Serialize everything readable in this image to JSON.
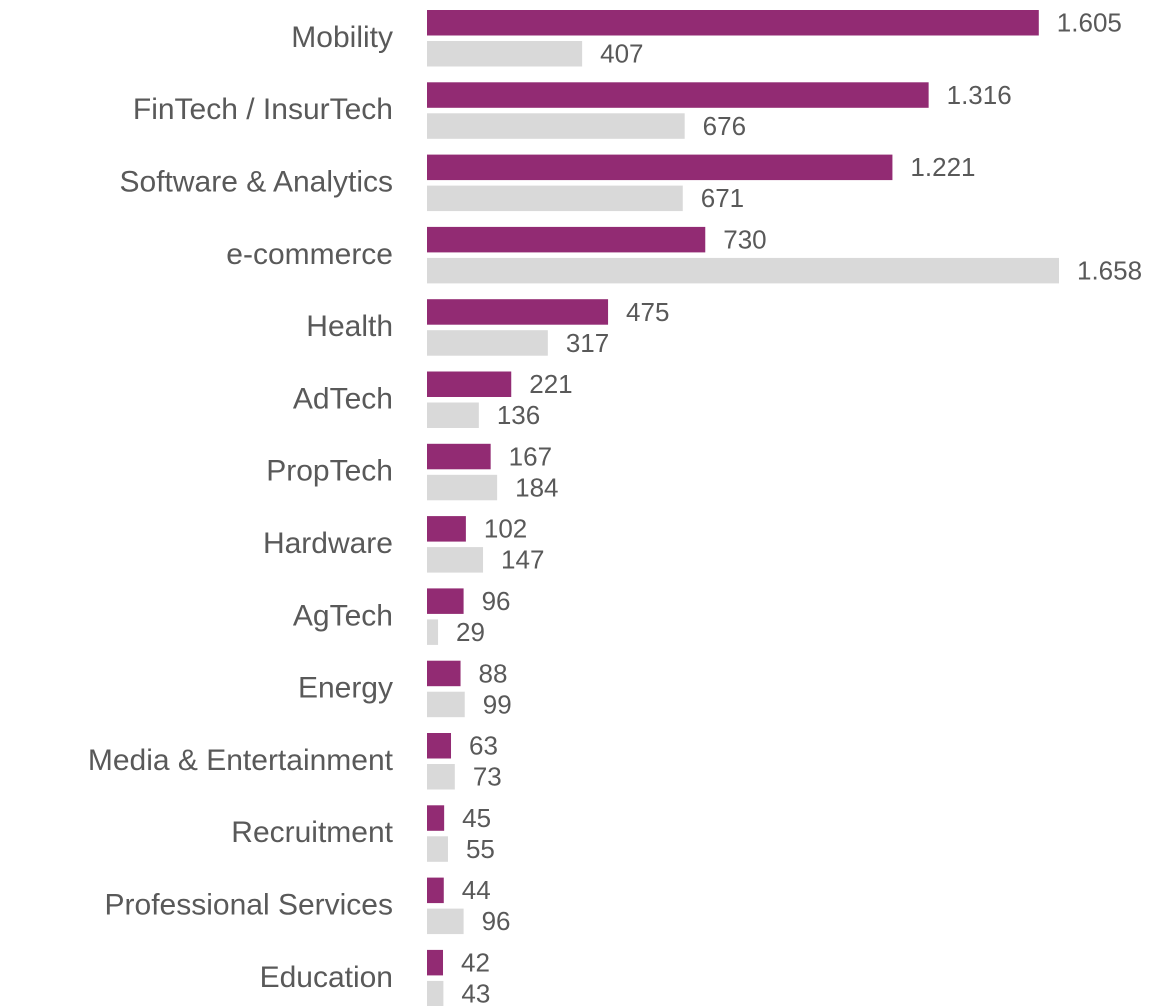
{
  "chart_data": {
    "type": "bar",
    "orientation": "horizontal",
    "categories": [
      "Mobility",
      "FinTech / InsurTech",
      "Software & Analytics",
      "e-commerce",
      "Health",
      "AdTech",
      "PropTech",
      "Hardware",
      "AgTech",
      "Energy",
      "Media & Entertainment",
      "Recruitment",
      "Professional Services",
      "Education"
    ],
    "series": [
      {
        "color": "#922b73",
        "values": [
          1605,
          1316,
          1221,
          730,
          475,
          221,
          167,
          102,
          96,
          88,
          63,
          45,
          44,
          42
        ],
        "value_labels": [
          "1.605",
          "1.316",
          "1.221",
          "730",
          "475",
          "221",
          "167",
          "102",
          "96",
          "88",
          "63",
          "45",
          "44",
          "42"
        ]
      },
      {
        "color": "#d9d9d9",
        "values": [
          407,
          676,
          671,
          1658,
          317,
          136,
          184,
          147,
          29,
          99,
          73,
          55,
          96,
          43
        ],
        "value_labels": [
          "407",
          "676",
          "671",
          "1.658",
          "317",
          "136",
          "184",
          "147",
          "29",
          "99",
          "73",
          "55",
          "96",
          "43"
        ]
      }
    ]
  }
}
